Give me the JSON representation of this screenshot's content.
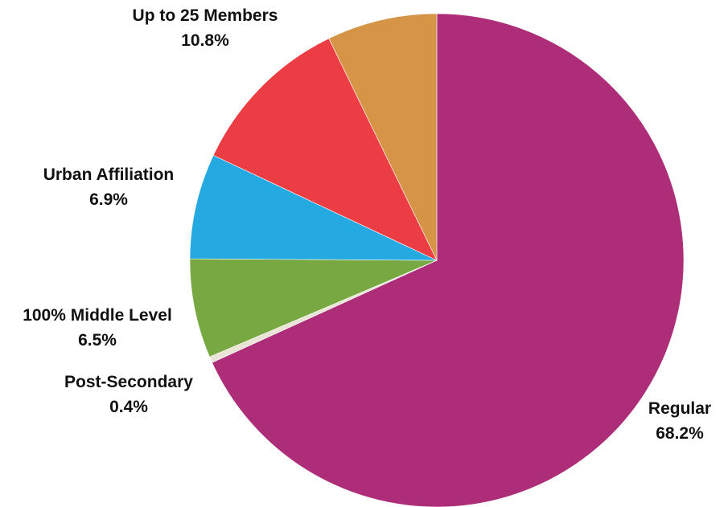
{
  "chart_data": {
    "type": "pie",
    "title": "",
    "start_angle_deg": 0,
    "direction": "clockwise",
    "slices": [
      {
        "name": "Regular",
        "value": 68.2,
        "label": "68.2%",
        "color": "#ae2d79"
      },
      {
        "name": "Post-Secondary",
        "value": 0.4,
        "label": "0.4%",
        "color": "#e9e4d6"
      },
      {
        "name": "100% Middle Level",
        "value": 6.5,
        "label": "6.5%",
        "color": "#78a842"
      },
      {
        "name": "Urban Affiliation",
        "value": 6.9,
        "label": "6.9%",
        "color": "#24a9e0"
      },
      {
        "name": "Up to 25 Members",
        "value": 10.8,
        "label": "10.8%",
        "color": "#ec3d44"
      },
      {
        "name": "",
        "value": 7.2,
        "label": "",
        "color": "#d69446"
      }
    ]
  }
}
